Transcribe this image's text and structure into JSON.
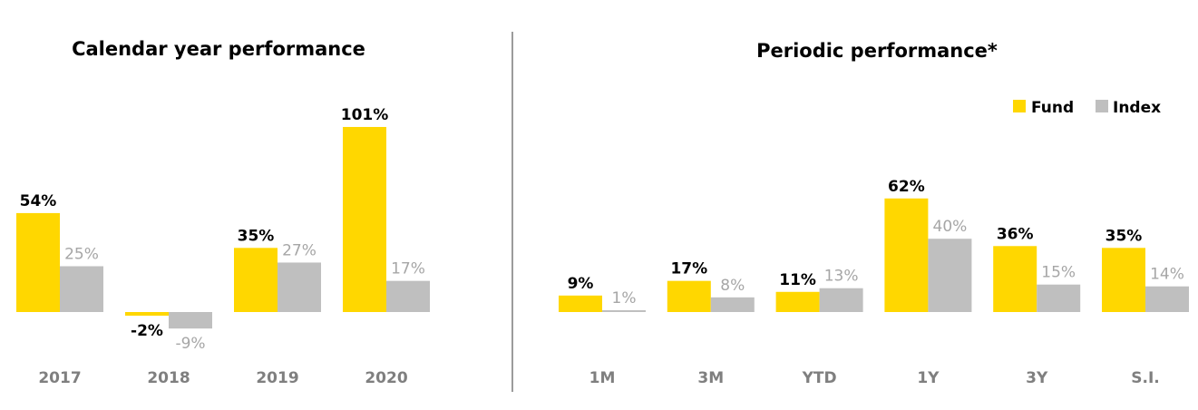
{
  "colors": {
    "fund": "#FFD700",
    "index": "#BFBFBF",
    "fund_label": "#000000",
    "index_label": "#A6A6A6",
    "category_label": "#7F7F7F",
    "divider": "#595959"
  },
  "legend": {
    "fund": "Fund",
    "index": "Index",
    "placement": "top-right"
  },
  "chart_data": [
    {
      "type": "bar",
      "title": "Calendar year performance",
      "categories": [
        "2017",
        "2018",
        "2019",
        "2020"
      ],
      "series": [
        {
          "name": "Fund",
          "values": [
            54,
            -2,
            35,
            101
          ],
          "labels": [
            "54%",
            "-2%",
            "35%",
            "101%"
          ]
        },
        {
          "name": "Index",
          "values": [
            25,
            -9,
            27,
            17
          ],
          "labels": [
            "25%",
            "-9%",
            "27%",
            "17%"
          ]
        }
      ],
      "ylim": [
        -20,
        110
      ],
      "grid": false
    },
    {
      "type": "bar",
      "title": "Periodic performance*",
      "categories": [
        "1M",
        "3M",
        "YTD",
        "1Y",
        "3Y",
        "S.I."
      ],
      "series": [
        {
          "name": "Fund",
          "values": [
            9,
            17,
            11,
            62,
            36,
            35
          ],
          "labels": [
            "9%",
            "17%",
            "11%",
            "62%",
            "36%",
            "35%"
          ]
        },
        {
          "name": "Index",
          "values": [
            1,
            8,
            13,
            40,
            15,
            14
          ],
          "labels": [
            "1%",
            "8%",
            "13%",
            "40%",
            "15%",
            "14%"
          ]
        }
      ],
      "ylim": [
        -20,
        110
      ],
      "grid": false
    }
  ]
}
